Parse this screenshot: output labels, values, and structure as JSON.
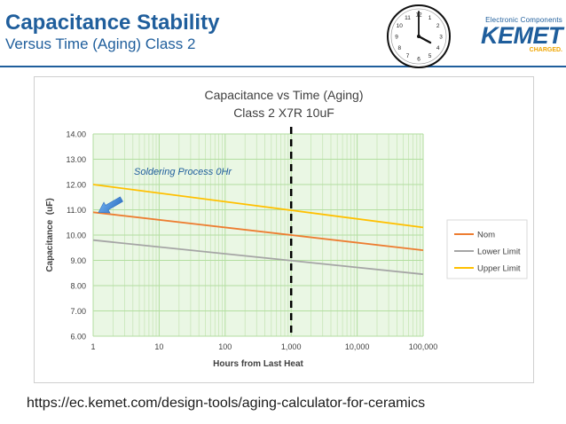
{
  "header": {
    "title": "Capacitance Stability",
    "subtitle": "Versus Time (Aging) Class 2"
  },
  "logo": {
    "tagline": "Electronic Components",
    "name": "KEMET",
    "charged": "CHARGED."
  },
  "clock": {
    "numbers": [
      "12",
      "1",
      "2",
      "3",
      "4",
      "5",
      "6",
      "7",
      "8",
      "9",
      "10",
      "11"
    ]
  },
  "footer": {
    "url": "https://ec.kemet.com/design-tools/aging-calculator-for-ceramics"
  },
  "chart_data": {
    "type": "line",
    "title": "Capacitance vs Time (Aging)",
    "subtitle": "Class 2 X7R 10uF",
    "xlabel": "Hours from Last Heat",
    "ylabel": "Capacitance  (uF)",
    "xscale": "log",
    "xlim": [
      1,
      100000
    ],
    "ylim": [
      6.0,
      14.0
    ],
    "x_ticks": [
      1,
      10,
      100,
      1000,
      10000,
      100000
    ],
    "x_tick_labels": [
      "1",
      "10",
      "100",
      "1,000",
      "10,000",
      "100,000"
    ],
    "y_ticks": [
      6,
      7,
      8,
      9,
      10,
      11,
      12,
      13,
      14
    ],
    "y_tick_labels": [
      "6.00",
      "7.00",
      "8.00",
      "9.00",
      "10.00",
      "11.00",
      "12.00",
      "13.00",
      "14.00"
    ],
    "grid": true,
    "legend_position": "right",
    "series": [
      {
        "name": "Nom",
        "color": "#ed7d31",
        "x": [
          1,
          100000
        ],
        "y": [
          10.9,
          9.4
        ]
      },
      {
        "name": "Lower Limit",
        "color": "#a5a5a5",
        "x": [
          1,
          100000
        ],
        "y": [
          9.8,
          8.45
        ]
      },
      {
        "name": "Upper Limit",
        "color": "#ffc000",
        "x": [
          1,
          100000
        ],
        "y": [
          12.0,
          10.3
        ]
      }
    ],
    "reference_line": {
      "x": 1000,
      "style": "dashed",
      "color": "#000000"
    },
    "annotation": {
      "text": "Soldering Process 0Hr",
      "x": 1,
      "y": 11.0,
      "color": "#1f5e9c"
    }
  }
}
